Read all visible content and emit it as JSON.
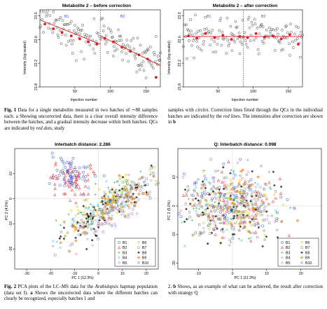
{
  "figure1": {
    "left": {
      "title": "Metabolite 2 – before correction",
      "ylabel": "Intensity (log-scaled)",
      "xlabel": "Injection number",
      "batch_labels": [
        "B1",
        "B2"
      ]
    },
    "right": {
      "title": "Metabolite 2 – after correction",
      "ylabel": "Intensity (log-scaled)",
      "xlabel": "Injection number",
      "batch_labels": [
        "B1",
        "B2"
      ]
    },
    "caption": {
      "label": "Fig. 1",
      "col1": "Data for a single metabolite measured in two batches of ∼80 samples each. a Showing uncorrected data, there is a clear overall intensity difference between the batches, and a gradual intensity decrease within both batches. QCs are indicated by",
      "col1_em": "red dots",
      "col1_end": ", study",
      "col2_start": "samples with",
      "col2_em1": "circles",
      "col2_mid": ". Correction lines fitted through the QCs in the individual batches are indicated by the",
      "col2_em2": "red lines",
      "col2_end": ". The intensities after correction are shown in",
      "col2_bold": "b"
    }
  },
  "figure2": {
    "left": {
      "title": "Interbatch distance: 2.286",
      "xlabel": "PC 1 (12.3%)",
      "ylabel": "PC 2 (4.5%)"
    },
    "right": {
      "title": "Q: Interbatch distance: 0.098",
      "xlabel": "PC 1 (11.3%)",
      "ylabel": "PC 2 (5.0%)"
    },
    "legend": [
      "B1",
      "B2",
      "B3",
      "B4",
      "B5",
      "B6",
      "B7",
      "B8",
      "B9",
      "B10"
    ],
    "caption": {
      "label": "Fig. 2",
      "col1_a": "PCA plots of the LC–MS data for the",
      "col1_em": "Arabidopsis",
      "col1_b": "hapmap population (data set I).",
      "col1_bold": "a",
      "col1_c": "Shows the uncorrected data where the different batches can clearly be recognized, especially batches 1 and",
      "col2_a": "2.",
      "col2_bold": "b",
      "col2_b": "Shows, as an example of what can be achieved, the result after correction with strategy Q"
    }
  },
  "chart_data": [
    {
      "type": "scatter",
      "title": "Metabolite 2 – before correction",
      "xlabel": "Injection number",
      "ylabel": "Intensity (log-scaled)",
      "xlim": [
        1,
        170
      ],
      "ylim": [
        21.8,
        23.1
      ],
      "xticks": [
        50,
        100,
        150
      ],
      "yticks": [
        21.8,
        22.2,
        22.6,
        23.0
      ],
      "batch_boundary_x": 86,
      "series": [
        {
          "name": "samples",
          "marker": "open-circle",
          "estimated_pattern": "B1 centred near 22.85 falling to ~22.6; B2 centred near 22.65 falling to ~22.2"
        },
        {
          "name": "QCs",
          "marker": "red-dot",
          "x": [
            8,
            20,
            32,
            45,
            57,
            69,
            81,
            92,
            104,
            116,
            128,
            140,
            152,
            164
          ],
          "y": [
            22.86,
            22.78,
            22.72,
            22.66,
            22.61,
            22.56,
            22.52,
            22.62,
            22.56,
            22.47,
            22.4,
            22.34,
            22.27,
            21.96
          ]
        }
      ],
      "correction_lines": [
        {
          "batch": "B1",
          "x": [
            1,
            86
          ],
          "y": [
            22.93,
            22.52
          ]
        },
        {
          "batch": "B2",
          "x": [
            86,
            170
          ],
          "y": [
            22.66,
            22.16
          ]
        }
      ]
    },
    {
      "type": "scatter",
      "title": "Metabolite 2 – after correction",
      "xlabel": "Injection number",
      "ylabel": "Intensity (log-scaled)",
      "xlim": [
        1,
        170
      ],
      "ylim": [
        21.8,
        23.1
      ],
      "xticks": [
        50,
        100,
        150
      ],
      "yticks": [
        21.8,
        22.2,
        22.6,
        23.0
      ],
      "batch_boundary_x": 86,
      "series": [
        {
          "name": "samples",
          "marker": "open-circle",
          "estimated_pattern": "both batches centred near 22.65"
        },
        {
          "name": "QCs",
          "marker": "red-dot",
          "x": [
            8,
            20,
            32,
            45,
            57,
            69,
            81,
            92,
            104,
            116,
            128,
            140,
            152,
            164
          ],
          "y": [
            22.66,
            22.62,
            22.7,
            22.63,
            22.67,
            22.6,
            22.65,
            22.63,
            22.7,
            22.64,
            22.66,
            22.61,
            22.68,
            22.52
          ]
        }
      ],
      "correction_lines": [
        {
          "batch": "B1",
          "x": [
            1,
            86
          ],
          "y": [
            22.65,
            22.65
          ]
        },
        {
          "batch": "B2",
          "x": [
            86,
            170
          ],
          "y": [
            22.65,
            22.65
          ]
        }
      ]
    },
    {
      "type": "scatter",
      "title": "Interbatch distance: 2.286",
      "xlabel": "PC 1 (12.3%)",
      "ylabel": "PC 2 (4.5%)",
      "xlim": [
        -35,
        25
      ],
      "ylim": [
        -28,
        20
      ],
      "xticks": [
        -30,
        -20,
        -10,
        0,
        10,
        20
      ],
      "yticks": [
        -20,
        -10,
        0,
        10
      ],
      "series": [
        {
          "name": "B1",
          "cluster_center": [
            -12,
            10
          ],
          "spread": [
            5,
            4
          ]
        },
        {
          "name": "B2",
          "cluster_center": [
            -12,
            8
          ],
          "spread": [
            5,
            4
          ]
        },
        {
          "name": "B3",
          "cluster_center": [
            3,
            -1
          ],
          "spread": [
            8,
            7
          ]
        },
        {
          "name": "B4",
          "cluster_center": [
            5,
            -2
          ],
          "spread": [
            8,
            7
          ]
        },
        {
          "name": "B5",
          "cluster_center": [
            8,
            -3
          ],
          "spread": [
            7,
            6
          ]
        },
        {
          "name": "B6",
          "cluster_center": [
            4,
            -1
          ],
          "spread": [
            8,
            7
          ]
        },
        {
          "name": "B7",
          "cluster_center": [
            6,
            -4
          ],
          "spread": [
            8,
            7
          ]
        },
        {
          "name": "B8",
          "cluster_center": [
            5,
            -3
          ],
          "spread": [
            8,
            7
          ]
        },
        {
          "name": "B9",
          "cluster_center": [
            7,
            -2
          ],
          "spread": [
            7,
            6
          ]
        },
        {
          "name": "B10",
          "cluster_center": [
            5,
            -3
          ],
          "spread": [
            8,
            7
          ]
        }
      ]
    },
    {
      "type": "scatter",
      "title": "Q: Interbatch distance: 0.098",
      "xlabel": "PC 1 (11.3%)",
      "ylabel": "PC 2 (5.0%)",
      "xlim": [
        -16,
        26
      ],
      "ylim": [
        -22,
        20
      ],
      "xticks": [
        -10,
        0,
        10,
        20
      ],
      "yticks": [
        -20,
        -10,
        0,
        10
      ],
      "series": [
        {
          "name": "B1",
          "cluster_center": [
            0,
            0
          ],
          "spread": [
            7,
            6
          ]
        },
        {
          "name": "B2",
          "cluster_center": [
            0,
            0
          ],
          "spread": [
            7,
            6
          ]
        },
        {
          "name": "B3",
          "cluster_center": [
            0,
            0
          ],
          "spread": [
            7,
            6
          ]
        },
        {
          "name": "B4",
          "cluster_center": [
            0,
            0
          ],
          "spread": [
            7,
            6
          ]
        },
        {
          "name": "B5",
          "cluster_center": [
            0,
            0
          ],
          "spread": [
            7,
            6
          ]
        },
        {
          "name": "B6",
          "cluster_center": [
            0,
            0
          ],
          "spread": [
            7,
            6
          ]
        },
        {
          "name": "B7",
          "cluster_center": [
            0,
            0
          ],
          "spread": [
            7,
            6
          ]
        },
        {
          "name": "B8",
          "cluster_center": [
            0,
            0
          ],
          "spread": [
            7,
            6
          ]
        },
        {
          "name": "B9",
          "cluster_center": [
            0,
            0
          ],
          "spread": [
            7,
            6
          ]
        },
        {
          "name": "B10",
          "cluster_center": [
            0,
            0
          ],
          "spread": [
            7,
            6
          ]
        }
      ]
    }
  ],
  "colors": {
    "qc_red": "#e41a1c",
    "axis": "#000000",
    "batch_label_blue": "#2b4fd6",
    "series": [
      "#1f4fd6",
      "#e41a1c",
      "#3f9f3f",
      "#00bcd4",
      "#c040c0",
      "#e8c800",
      "#888888",
      "#000000",
      "#e08020",
      "#a0a0a0"
    ]
  }
}
